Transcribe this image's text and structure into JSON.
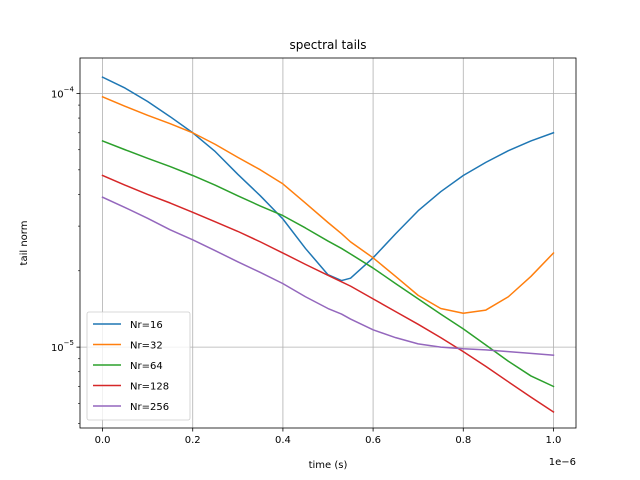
{
  "chart_data": {
    "type": "line",
    "title": "spectral tails",
    "xlabel": "time (s)",
    "ylabel": "tail norm",
    "x_offset_text": "1e−6",
    "xlim": [
      -0.05,
      1.05
    ],
    "ylim": [
      4.8e-06,
      0.000138
    ],
    "yscale": "log",
    "grid": true,
    "legend_position": "lower-left",
    "x_ticks": [
      {
        "value": 0.0,
        "label": "0.0"
      },
      {
        "value": 0.2,
        "label": "0.2"
      },
      {
        "value": 0.4,
        "label": "0.4"
      },
      {
        "value": 0.6,
        "label": "0.6"
      },
      {
        "value": 0.8,
        "label": "0.8"
      },
      {
        "value": 1.0,
        "label": "1.0"
      }
    ],
    "y_ticks": [
      {
        "value": 0.0001,
        "base": "10",
        "exp": "−4"
      },
      {
        "value": 1e-05,
        "base": "10",
        "exp": "−5"
      }
    ],
    "x": [
      0.0,
      0.05,
      0.1,
      0.15,
      0.2,
      0.25,
      0.3,
      0.35,
      0.4,
      0.45,
      0.5,
      0.53,
      0.55,
      0.6,
      0.65,
      0.7,
      0.75,
      0.8,
      0.85,
      0.9,
      0.95,
      1.0
    ],
    "series": [
      {
        "name": "Nr=16",
        "color": "#1f77b4",
        "values": [
          0.000116,
          0.000105,
          9.3e-05,
          8.1e-05,
          7e-05,
          5.9e-05,
          4.8e-05,
          3.95e-05,
          3.2e-05,
          2.45e-05,
          1.93e-05,
          1.83e-05,
          1.87e-05,
          2.25e-05,
          2.8e-05,
          3.45e-05,
          4.1e-05,
          4.75e-05,
          5.35e-05,
          5.95e-05,
          6.5e-05,
          7e-05
        ]
      },
      {
        "name": "Nr=32",
        "color": "#ff7f0e",
        "values": [
          9.7e-05,
          8.9e-05,
          8.2e-05,
          7.6e-05,
          7e-05,
          6.3e-05,
          5.6e-05,
          5e-05,
          4.4e-05,
          3.7e-05,
          3.1e-05,
          2.8e-05,
          2.6e-05,
          2.25e-05,
          1.9e-05,
          1.6e-05,
          1.42e-05,
          1.36e-05,
          1.4e-05,
          1.58e-05,
          1.9e-05,
          2.35e-05
        ]
      },
      {
        "name": "Nr=64",
        "color": "#2ca02c",
        "values": [
          6.5e-05,
          6e-05,
          5.55e-05,
          5.15e-05,
          4.75e-05,
          4.35e-05,
          3.95e-05,
          3.6e-05,
          3.3e-05,
          2.95e-05,
          2.62e-05,
          2.45e-05,
          2.33e-05,
          2.05e-05,
          1.78e-05,
          1.55e-05,
          1.35e-05,
          1.18e-05,
          1.02e-05,
          8.8e-06,
          7.7e-06,
          7e-06
        ]
      },
      {
        "name": "Nr=128",
        "color": "#d62728",
        "values": [
          4.75e-05,
          4.35e-05,
          4e-05,
          3.7e-05,
          3.4e-05,
          3.12e-05,
          2.86e-05,
          2.6e-05,
          2.35e-05,
          2.12e-05,
          1.92e-05,
          1.81e-05,
          1.74e-05,
          1.55e-05,
          1.38e-05,
          1.23e-05,
          1.09e-05,
          9.6e-06,
          8.4e-06,
          7.3e-06,
          6.35e-06,
          5.55e-06
        ]
      },
      {
        "name": "Nr=256",
        "color": "#9467bd",
        "values": [
          3.9e-05,
          3.55e-05,
          3.22e-05,
          2.9e-05,
          2.65e-05,
          2.4e-05,
          2.17e-05,
          1.97e-05,
          1.78e-05,
          1.58e-05,
          1.42e-05,
          1.35e-05,
          1.29e-05,
          1.17e-05,
          1.09e-05,
          1.03e-05,
          1e-05,
          9.85e-06,
          9.75e-06,
          9.6e-06,
          9.45e-06,
          9.3e-06
        ]
      }
    ]
  }
}
